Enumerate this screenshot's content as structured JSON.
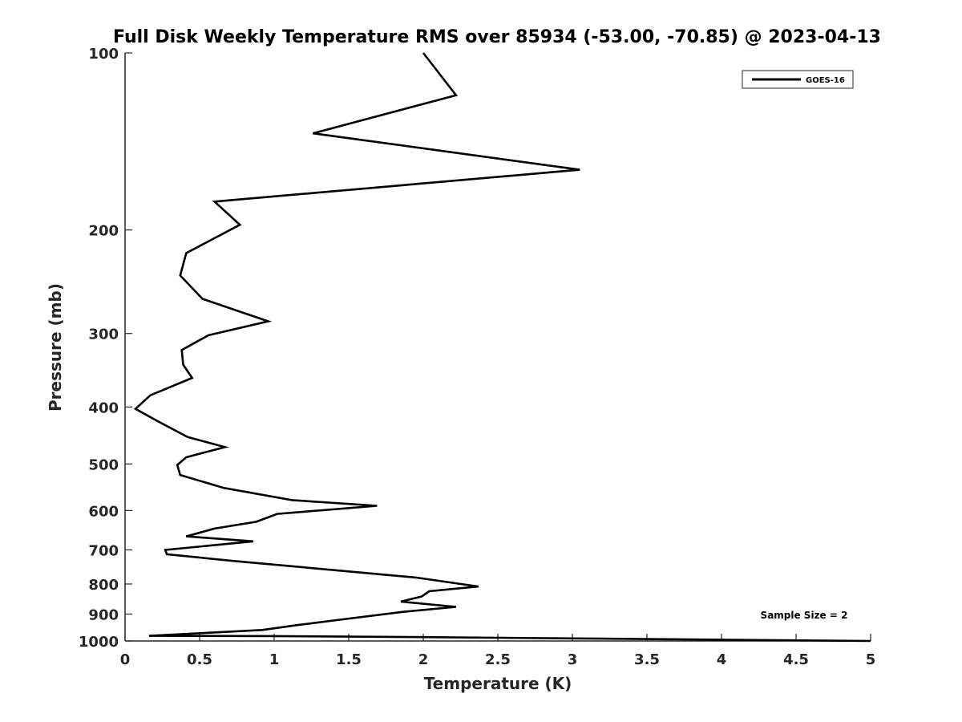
{
  "chart_data": {
    "type": "line",
    "title": "Full Disk Weekly Temperature RMS over 85934 (-53.00, -70.85) @ 2023-04-13",
    "xlabel": "Temperature (K)",
    "ylabel": "Pressure (mb)",
    "xlim": [
      0,
      5
    ],
    "ylim": [
      100,
      1000
    ],
    "yscale": "log",
    "y_reversed": true,
    "grid": false,
    "legend_position": "top-right",
    "annotation": "Sample Size = 2",
    "x_ticks": [
      0,
      0.5,
      1,
      1.5,
      2,
      2.5,
      3,
      3.5,
      4,
      4.5,
      5
    ],
    "x_tick_labels": [
      "0",
      "0.5",
      "1",
      "1.5",
      "2",
      "2.5",
      "3",
      "3.5",
      "4",
      "4.5",
      "5"
    ],
    "y_ticks": [
      100,
      200,
      300,
      400,
      500,
      600,
      700,
      800,
      900,
      1000
    ],
    "y_tick_labels": [
      "100",
      "200",
      "300",
      "400",
      "500",
      "600",
      "700",
      "800",
      "900",
      "1000"
    ],
    "series": [
      {
        "name": "GOES-16",
        "color": "#000000",
        "points": [
          [
            2.0,
            100
          ],
          [
            2.22,
            118
          ],
          [
            1.26,
            137
          ],
          [
            3.05,
            158
          ],
          [
            0.6,
            179
          ],
          [
            0.77,
            196
          ],
          [
            0.41,
            219
          ],
          [
            0.37,
            239
          ],
          [
            0.52,
            262
          ],
          [
            0.96,
            286
          ],
          [
            0.56,
            302
          ],
          [
            0.38,
            320
          ],
          [
            0.39,
            339
          ],
          [
            0.45,
            357
          ],
          [
            0.17,
            382
          ],
          [
            0.07,
            403
          ],
          [
            0.22,
            423
          ],
          [
            0.42,
            450
          ],
          [
            0.67,
            468
          ],
          [
            0.41,
            487
          ],
          [
            0.35,
            502
          ],
          [
            0.37,
            522
          ],
          [
            0.66,
            549
          ],
          [
            1.12,
            576
          ],
          [
            1.69,
            589
          ],
          [
            1.02,
            608
          ],
          [
            0.88,
            627
          ],
          [
            0.6,
            644
          ],
          [
            0.41,
            664
          ],
          [
            0.86,
            677
          ],
          [
            0.27,
            700
          ],
          [
            0.28,
            712
          ],
          [
            0.73,
            731
          ],
          [
            1.95,
            780
          ],
          [
            2.37,
            808
          ],
          [
            2.04,
            823
          ],
          [
            1.99,
            840
          ],
          [
            1.85,
            857
          ],
          [
            2.22,
            875
          ],
          [
            1.87,
            892
          ],
          [
            1.44,
            920
          ],
          [
            1.15,
            940
          ],
          [
            0.92,
            958
          ],
          [
            0.16,
            980
          ],
          [
            1.0,
            981
          ],
          [
            2.0,
            985
          ],
          [
            3.0,
            990
          ],
          [
            4.0,
            995
          ],
          [
            5.0,
            1000
          ]
        ]
      }
    ]
  }
}
